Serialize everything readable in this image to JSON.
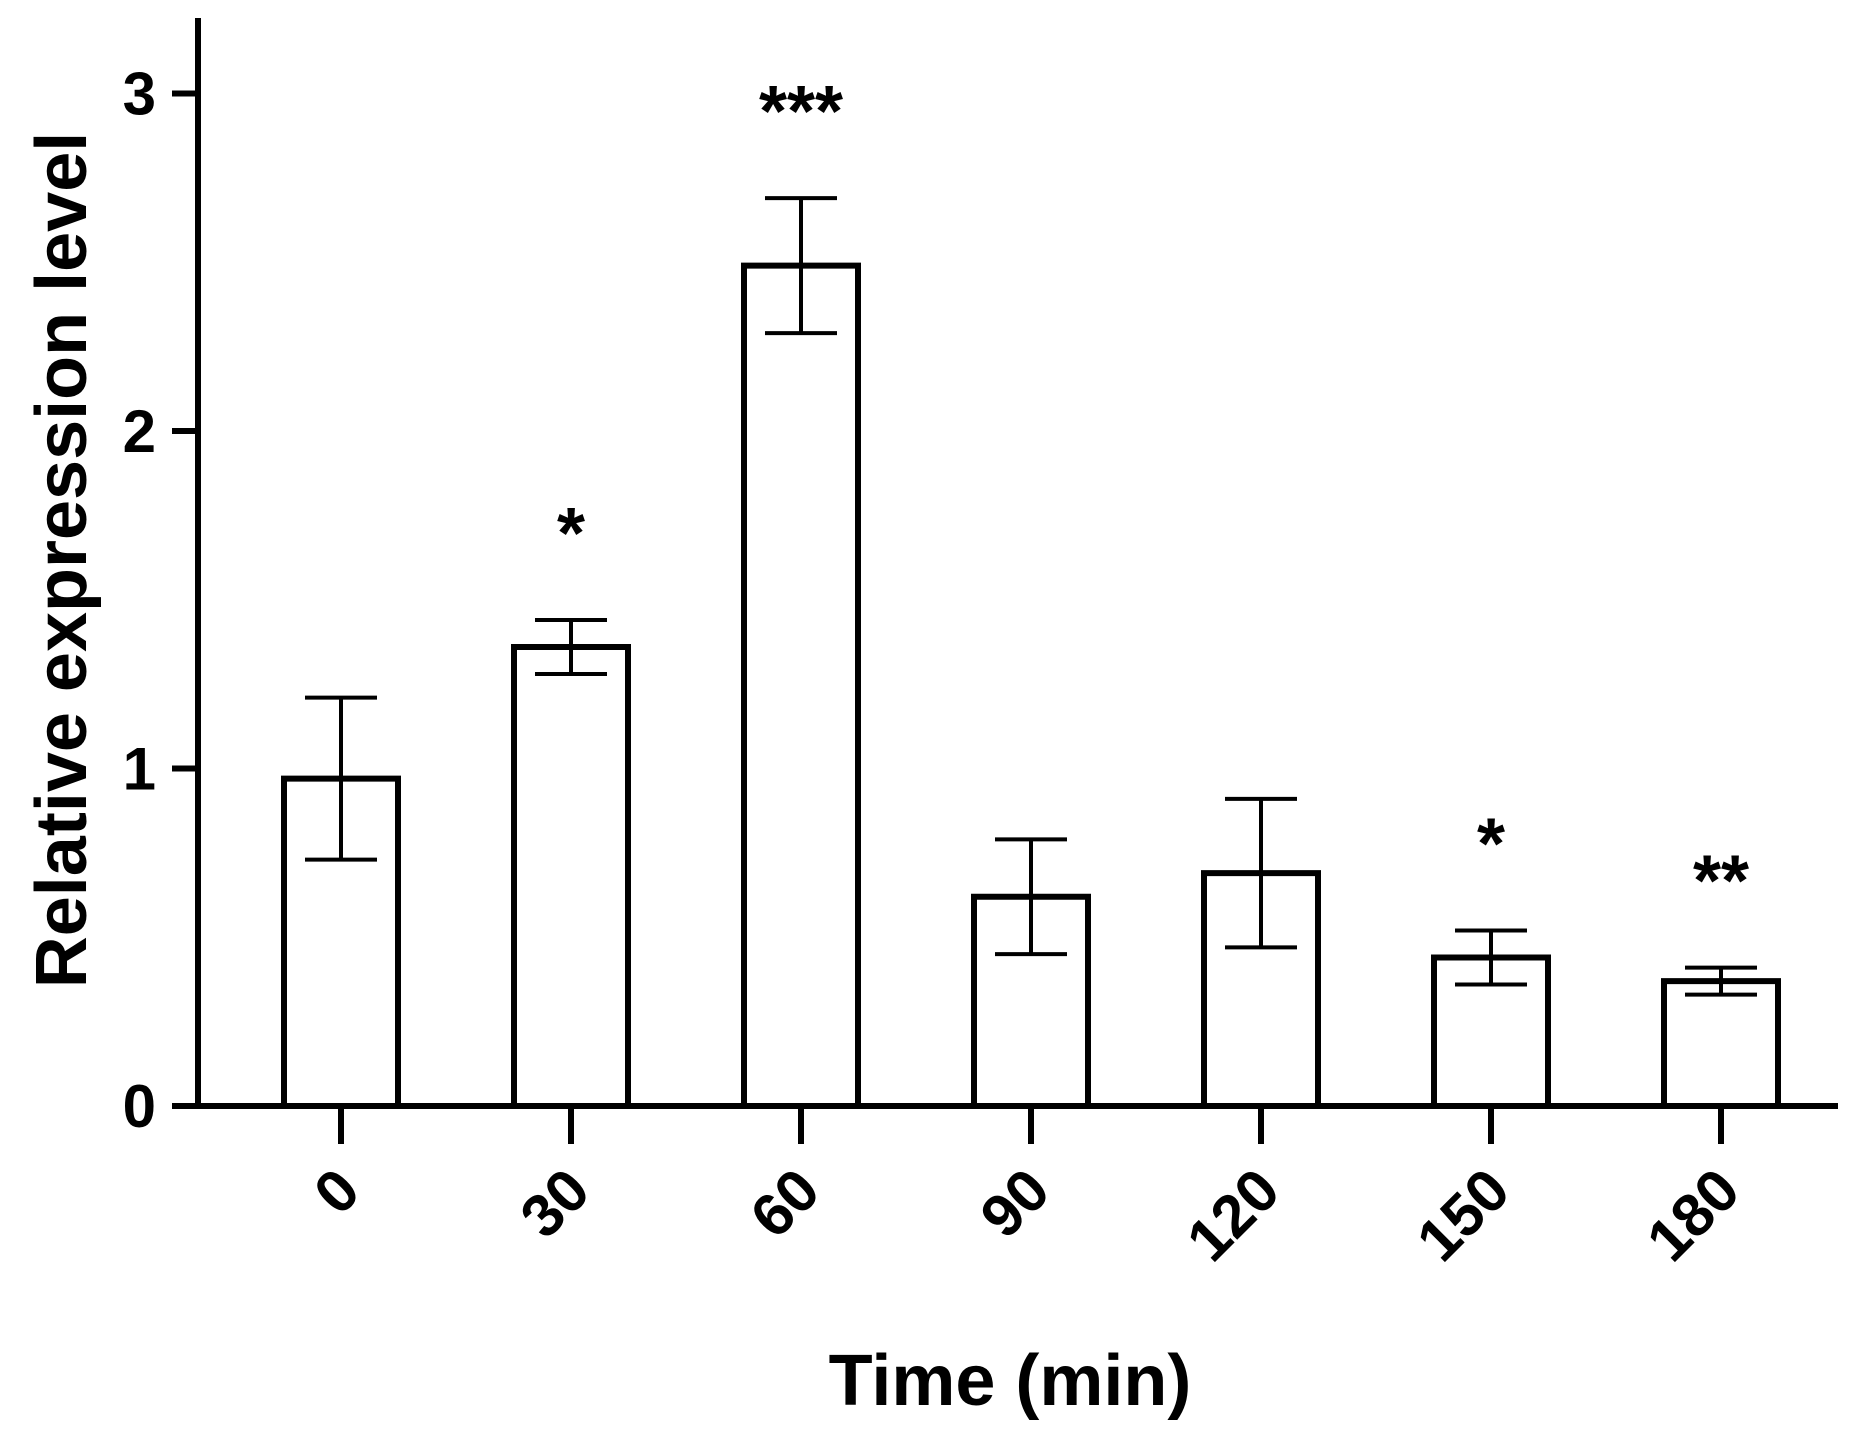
{
  "chart_data": {
    "type": "bar",
    "title": "",
    "xlabel": "Time (min)",
    "ylabel": "Relative expression level",
    "categories": [
      "0",
      "30",
      "60",
      "90",
      "120",
      "150",
      "180"
    ],
    "values": [
      0.97,
      1.36,
      2.49,
      0.62,
      0.69,
      0.44,
      0.37
    ],
    "error": [
      0.24,
      0.08,
      0.2,
      0.17,
      0.22,
      0.08,
      0.04
    ],
    "significance": [
      "",
      "*",
      "***",
      "",
      "",
      "*",
      "**"
    ],
    "yticks": [
      "0",
      "1",
      "2",
      "3"
    ],
    "ylim": [
      0,
      3.2
    ],
    "grid": false,
    "legend": "none",
    "bar_fill": "#ffffff",
    "bar_edge": "#000000"
  }
}
